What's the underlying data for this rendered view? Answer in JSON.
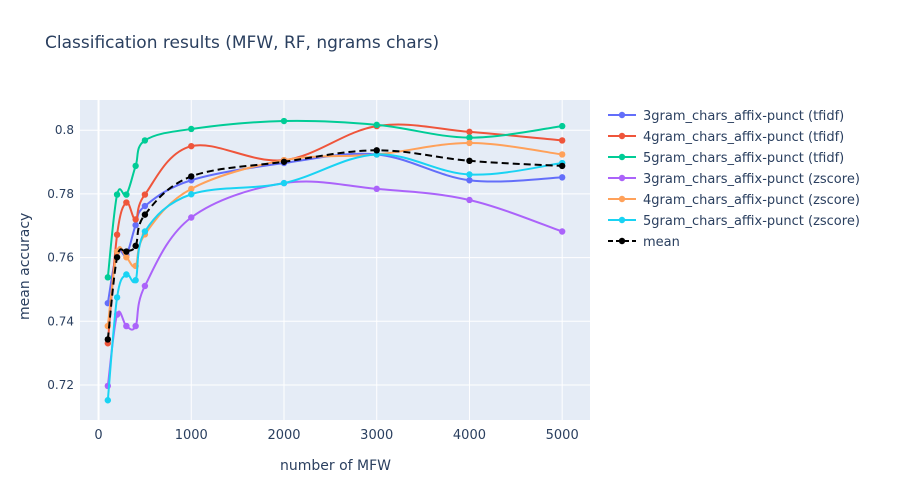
{
  "chart_data": {
    "type": "line",
    "title": "Classification results (MFW, RF, ngrams chars)",
    "xlabel": "number of MFW",
    "ylabel": "mean accuracy",
    "xlim": [
      -200,
      5300
    ],
    "ylim": [
      0.709,
      0.8095
    ],
    "xticks": [
      0,
      1000,
      2000,
      3000,
      4000,
      5000
    ],
    "xtick_labels": [
      "0",
      "1000",
      "2000",
      "3000",
      "4000",
      "5000"
    ],
    "yticks": [
      0.72,
      0.74,
      0.76,
      0.78,
      0.8
    ],
    "ytick_labels": [
      "0.72",
      "0.74",
      "0.76",
      "0.78",
      "0.8"
    ],
    "grid": true,
    "legend_position": "right",
    "background": "#e5ecf6",
    "x": [
      100,
      200,
      300,
      400,
      500,
      1000,
      2000,
      3000,
      4000,
      5000
    ],
    "series": [
      {
        "name": "3gram_chars_affix-punct (tfidf)",
        "color": "#636efa",
        "dash": false,
        "values": [
          0.7457,
          0.7618,
          0.7609,
          0.7702,
          0.7762,
          0.7843,
          0.7897,
          0.7924,
          0.7843,
          0.7852
        ]
      },
      {
        "name": "4gram_chars_affix-punct (tfidf)",
        "color": "#ef553b",
        "dash": false,
        "values": [
          0.7331,
          0.7672,
          0.7773,
          0.772,
          0.7798,
          0.795,
          0.7906,
          0.8013,
          0.7995,
          0.7968
        ]
      },
      {
        "name": "5gram_chars_affix-punct (tfidf)",
        "color": "#00cc96",
        "dash": false,
        "values": [
          0.7538,
          0.7798,
          0.7798,
          0.7888,
          0.7968,
          0.8004,
          0.8029,
          0.8017,
          0.7977,
          0.8013
        ]
      },
      {
        "name": "3gram_chars_affix-punct (zscore)",
        "color": "#ab63fa",
        "dash": false,
        "values": [
          0.7197,
          0.7421,
          0.7385,
          0.7385,
          0.7511,
          0.7726,
          0.7834,
          0.7816,
          0.7781,
          0.7682
        ]
      },
      {
        "name": "4gram_chars_affix-punct (zscore)",
        "color": "#ffa15a",
        "dash": false,
        "values": [
          0.7385,
          0.7619,
          0.7601,
          0.7574,
          0.7673,
          0.7816,
          0.7906,
          0.7924,
          0.796,
          0.7924
        ]
      },
      {
        "name": "5gram_chars_affix-punct (zscore)",
        "color": "#19d3f3",
        "dash": false,
        "values": [
          0.7152,
          0.7475,
          0.7547,
          0.7529,
          0.7682,
          0.7799,
          0.7834,
          0.7924,
          0.7861,
          0.7897
        ]
      },
      {
        "name": "mean",
        "color": "#000000",
        "dash": true,
        "values": [
          0.7343,
          0.7601,
          0.7619,
          0.7637,
          0.7735,
          0.7855,
          0.7901,
          0.7937,
          0.7904,
          0.7888
        ]
      }
    ]
  }
}
